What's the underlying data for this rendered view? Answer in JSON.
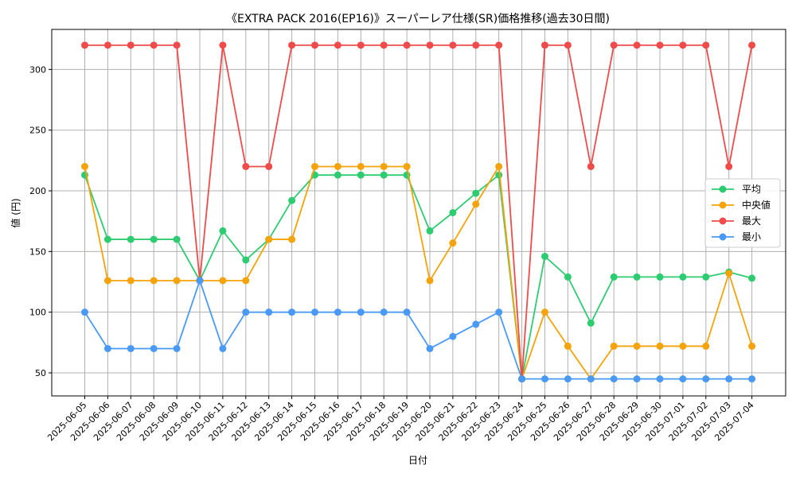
{
  "chart_data": {
    "type": "line",
    "title": "《EXTRA PACK 2016(EP16)》スーパーレア仕様(SR)価格推移(過去30日間)",
    "xlabel": "日付",
    "ylabel": "値 (円)",
    "ylim": [
      31,
      333
    ],
    "yticks": [
      50,
      100,
      150,
      200,
      250,
      300
    ],
    "grid": true,
    "legend_position": "right",
    "categories": [
      "2025-06-05",
      "2025-06-06",
      "2025-06-07",
      "2025-06-08",
      "2025-06-09",
      "2025-06-10",
      "2025-06-11",
      "2025-06-12",
      "2025-06-13",
      "2025-06-14",
      "2025-06-15",
      "2025-06-16",
      "2025-06-17",
      "2025-06-18",
      "2025-06-19",
      "2025-06-20",
      "2025-06-21",
      "2025-06-22",
      "2025-06-23",
      "2025-06-24",
      "2025-06-25",
      "2025-06-26",
      "2025-06-27",
      "2025-06-28",
      "2025-06-29",
      "2025-06-30",
      "2025-07-01",
      "2025-07-02",
      "2025-07-03",
      "2025-07-04"
    ],
    "series": [
      {
        "name": "平均",
        "color": "#2ecc71",
        "values": [
          213,
          160,
          160,
          160,
          160,
          126,
          167,
          143,
          160,
          192,
          213,
          213,
          213,
          213,
          213,
          167,
          182,
          198,
          213,
          45,
          146,
          129,
          91,
          129,
          129,
          129,
          129,
          129,
          133,
          128
        ]
      },
      {
        "name": "中央値",
        "color": "#f5a30a",
        "values": [
          220,
          126,
          126,
          126,
          126,
          126,
          126,
          126,
          160,
          160,
          220,
          220,
          220,
          220,
          220,
          126,
          157,
          189,
          220,
          45,
          100,
          72,
          45,
          72,
          72,
          72,
          72,
          72,
          132,
          72
        ]
      },
      {
        "name": "最大",
        "color": "#ef4b4b",
        "values": [
          320,
          320,
          320,
          320,
          320,
          126,
          320,
          220,
          220,
          320,
          320,
          320,
          320,
          320,
          320,
          320,
          320,
          320,
          320,
          45,
          320,
          320,
          220,
          320,
          320,
          320,
          320,
          320,
          220,
          320
        ]
      },
      {
        "name": "最小",
        "color": "#4a9af5",
        "values": [
          100,
          70,
          70,
          70,
          70,
          126,
          70,
          100,
          100,
          100,
          100,
          100,
          100,
          100,
          100,
          70,
          80,
          90,
          100,
          45,
          45,
          45,
          45,
          45,
          45,
          45,
          45,
          45,
          45,
          45
        ]
      }
    ]
  }
}
